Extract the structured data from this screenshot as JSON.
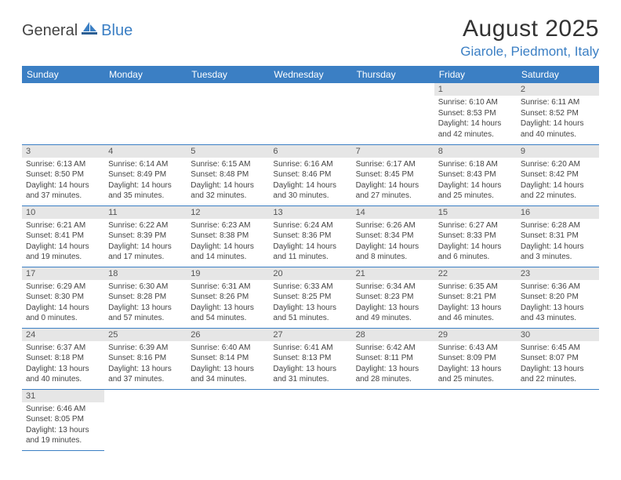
{
  "header": {
    "logo_general": "General",
    "logo_blue": "Blue",
    "month_title": "August 2025",
    "location": "Giarole, Piedmont, Italy"
  },
  "colors": {
    "brand_blue": "#3b7fc4",
    "header_text": "#ffffff",
    "daynum_bg": "#e6e6e6",
    "border": "#3b7fc4",
    "text": "#444444"
  },
  "weekdays": [
    "Sunday",
    "Monday",
    "Tuesday",
    "Wednesday",
    "Thursday",
    "Friday",
    "Saturday"
  ],
  "weeks": [
    [
      null,
      null,
      null,
      null,
      null,
      {
        "n": "1",
        "sr": "Sunrise: 6:10 AM",
        "ss": "Sunset: 8:53 PM",
        "dl": "Daylight: 14 hours and 42 minutes."
      },
      {
        "n": "2",
        "sr": "Sunrise: 6:11 AM",
        "ss": "Sunset: 8:52 PM",
        "dl": "Daylight: 14 hours and 40 minutes."
      }
    ],
    [
      {
        "n": "3",
        "sr": "Sunrise: 6:13 AM",
        "ss": "Sunset: 8:50 PM",
        "dl": "Daylight: 14 hours and 37 minutes."
      },
      {
        "n": "4",
        "sr": "Sunrise: 6:14 AM",
        "ss": "Sunset: 8:49 PM",
        "dl": "Daylight: 14 hours and 35 minutes."
      },
      {
        "n": "5",
        "sr": "Sunrise: 6:15 AM",
        "ss": "Sunset: 8:48 PM",
        "dl": "Daylight: 14 hours and 32 minutes."
      },
      {
        "n": "6",
        "sr": "Sunrise: 6:16 AM",
        "ss": "Sunset: 8:46 PM",
        "dl": "Daylight: 14 hours and 30 minutes."
      },
      {
        "n": "7",
        "sr": "Sunrise: 6:17 AM",
        "ss": "Sunset: 8:45 PM",
        "dl": "Daylight: 14 hours and 27 minutes."
      },
      {
        "n": "8",
        "sr": "Sunrise: 6:18 AM",
        "ss": "Sunset: 8:43 PM",
        "dl": "Daylight: 14 hours and 25 minutes."
      },
      {
        "n": "9",
        "sr": "Sunrise: 6:20 AM",
        "ss": "Sunset: 8:42 PM",
        "dl": "Daylight: 14 hours and 22 minutes."
      }
    ],
    [
      {
        "n": "10",
        "sr": "Sunrise: 6:21 AM",
        "ss": "Sunset: 8:41 PM",
        "dl": "Daylight: 14 hours and 19 minutes."
      },
      {
        "n": "11",
        "sr": "Sunrise: 6:22 AM",
        "ss": "Sunset: 8:39 PM",
        "dl": "Daylight: 14 hours and 17 minutes."
      },
      {
        "n": "12",
        "sr": "Sunrise: 6:23 AM",
        "ss": "Sunset: 8:38 PM",
        "dl": "Daylight: 14 hours and 14 minutes."
      },
      {
        "n": "13",
        "sr": "Sunrise: 6:24 AM",
        "ss": "Sunset: 8:36 PM",
        "dl": "Daylight: 14 hours and 11 minutes."
      },
      {
        "n": "14",
        "sr": "Sunrise: 6:26 AM",
        "ss": "Sunset: 8:34 PM",
        "dl": "Daylight: 14 hours and 8 minutes."
      },
      {
        "n": "15",
        "sr": "Sunrise: 6:27 AM",
        "ss": "Sunset: 8:33 PM",
        "dl": "Daylight: 14 hours and 6 minutes."
      },
      {
        "n": "16",
        "sr": "Sunrise: 6:28 AM",
        "ss": "Sunset: 8:31 PM",
        "dl": "Daylight: 14 hours and 3 minutes."
      }
    ],
    [
      {
        "n": "17",
        "sr": "Sunrise: 6:29 AM",
        "ss": "Sunset: 8:30 PM",
        "dl": "Daylight: 14 hours and 0 minutes."
      },
      {
        "n": "18",
        "sr": "Sunrise: 6:30 AM",
        "ss": "Sunset: 8:28 PM",
        "dl": "Daylight: 13 hours and 57 minutes."
      },
      {
        "n": "19",
        "sr": "Sunrise: 6:31 AM",
        "ss": "Sunset: 8:26 PM",
        "dl": "Daylight: 13 hours and 54 minutes."
      },
      {
        "n": "20",
        "sr": "Sunrise: 6:33 AM",
        "ss": "Sunset: 8:25 PM",
        "dl": "Daylight: 13 hours and 51 minutes."
      },
      {
        "n": "21",
        "sr": "Sunrise: 6:34 AM",
        "ss": "Sunset: 8:23 PM",
        "dl": "Daylight: 13 hours and 49 minutes."
      },
      {
        "n": "22",
        "sr": "Sunrise: 6:35 AM",
        "ss": "Sunset: 8:21 PM",
        "dl": "Daylight: 13 hours and 46 minutes."
      },
      {
        "n": "23",
        "sr": "Sunrise: 6:36 AM",
        "ss": "Sunset: 8:20 PM",
        "dl": "Daylight: 13 hours and 43 minutes."
      }
    ],
    [
      {
        "n": "24",
        "sr": "Sunrise: 6:37 AM",
        "ss": "Sunset: 8:18 PM",
        "dl": "Daylight: 13 hours and 40 minutes."
      },
      {
        "n": "25",
        "sr": "Sunrise: 6:39 AM",
        "ss": "Sunset: 8:16 PM",
        "dl": "Daylight: 13 hours and 37 minutes."
      },
      {
        "n": "26",
        "sr": "Sunrise: 6:40 AM",
        "ss": "Sunset: 8:14 PM",
        "dl": "Daylight: 13 hours and 34 minutes."
      },
      {
        "n": "27",
        "sr": "Sunrise: 6:41 AM",
        "ss": "Sunset: 8:13 PM",
        "dl": "Daylight: 13 hours and 31 minutes."
      },
      {
        "n": "28",
        "sr": "Sunrise: 6:42 AM",
        "ss": "Sunset: 8:11 PM",
        "dl": "Daylight: 13 hours and 28 minutes."
      },
      {
        "n": "29",
        "sr": "Sunrise: 6:43 AM",
        "ss": "Sunset: 8:09 PM",
        "dl": "Daylight: 13 hours and 25 minutes."
      },
      {
        "n": "30",
        "sr": "Sunrise: 6:45 AM",
        "ss": "Sunset: 8:07 PM",
        "dl": "Daylight: 13 hours and 22 minutes."
      }
    ],
    [
      {
        "n": "31",
        "sr": "Sunrise: 6:46 AM",
        "ss": "Sunset: 8:05 PM",
        "dl": "Daylight: 13 hours and 19 minutes."
      },
      null,
      null,
      null,
      null,
      null,
      null
    ]
  ]
}
